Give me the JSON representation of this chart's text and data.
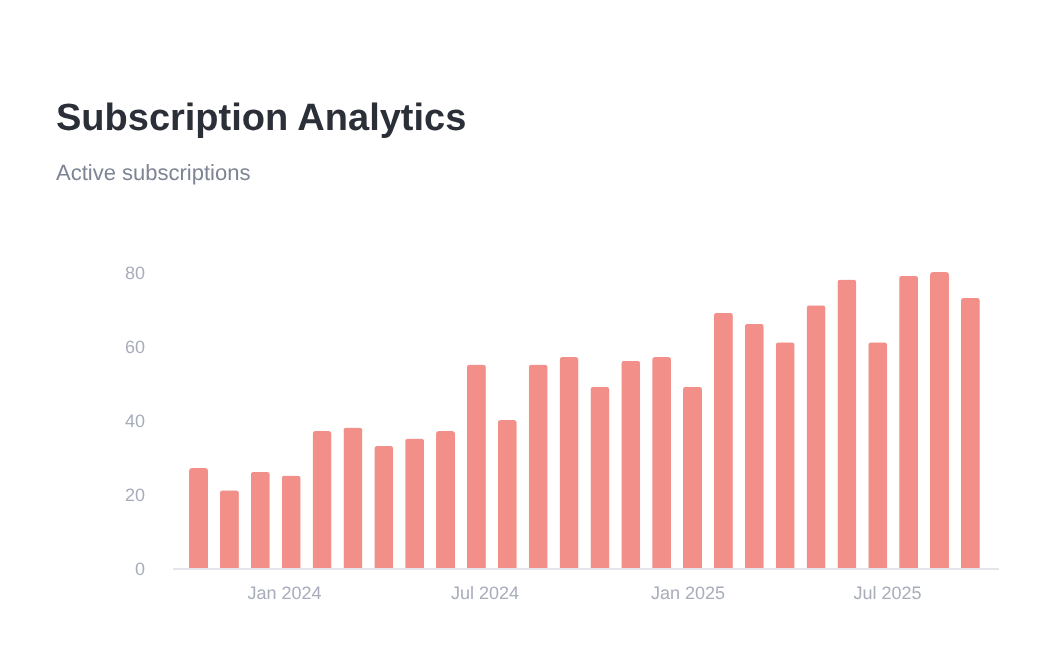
{
  "chart_data": {
    "type": "bar",
    "title": "Subscription Analytics",
    "subtitle": "Active subscriptions",
    "x": [
      "2023-10-16",
      "2023-11-13",
      "2023-12-11",
      "2024-01-08",
      "2024-02-05",
      "2024-03-04",
      "2024-04-01",
      "2024-04-29",
      "2024-05-27",
      "2024-06-24",
      "2024-07-22",
      "2024-08-19",
      "2024-09-16",
      "2024-10-14",
      "2024-11-11",
      "2024-12-09",
      "2025-01-06",
      "2025-02-03",
      "2025-03-03",
      "2025-03-31",
      "2025-04-28",
      "2025-05-26",
      "2025-06-23",
      "2025-07-21",
      "2025-08-18",
      "2025-09-15"
    ],
    "values": [
      27,
      21,
      26,
      25,
      37,
      38,
      33,
      35,
      37,
      55,
      40,
      55,
      57,
      49,
      56,
      57,
      49,
      69,
      66,
      61,
      71,
      78,
      61,
      79,
      80,
      73
    ],
    "color": "#f28f88",
    "xlim": [
      "2023-10-01",
      "2025-10-01"
    ],
    "xticks": [
      {
        "value": "2024-01-01",
        "label": "Jan 2024"
      },
      {
        "value": "2024-07-01",
        "label": "Jul 2024"
      },
      {
        "value": "2025-01-01",
        "label": "Jan 2025"
      },
      {
        "value": "2025-07-01",
        "label": "Jul 2025"
      }
    ],
    "ylim": [
      0,
      80
    ],
    "yticks": [
      0,
      20,
      40,
      60,
      80
    ],
    "grid": false
  }
}
